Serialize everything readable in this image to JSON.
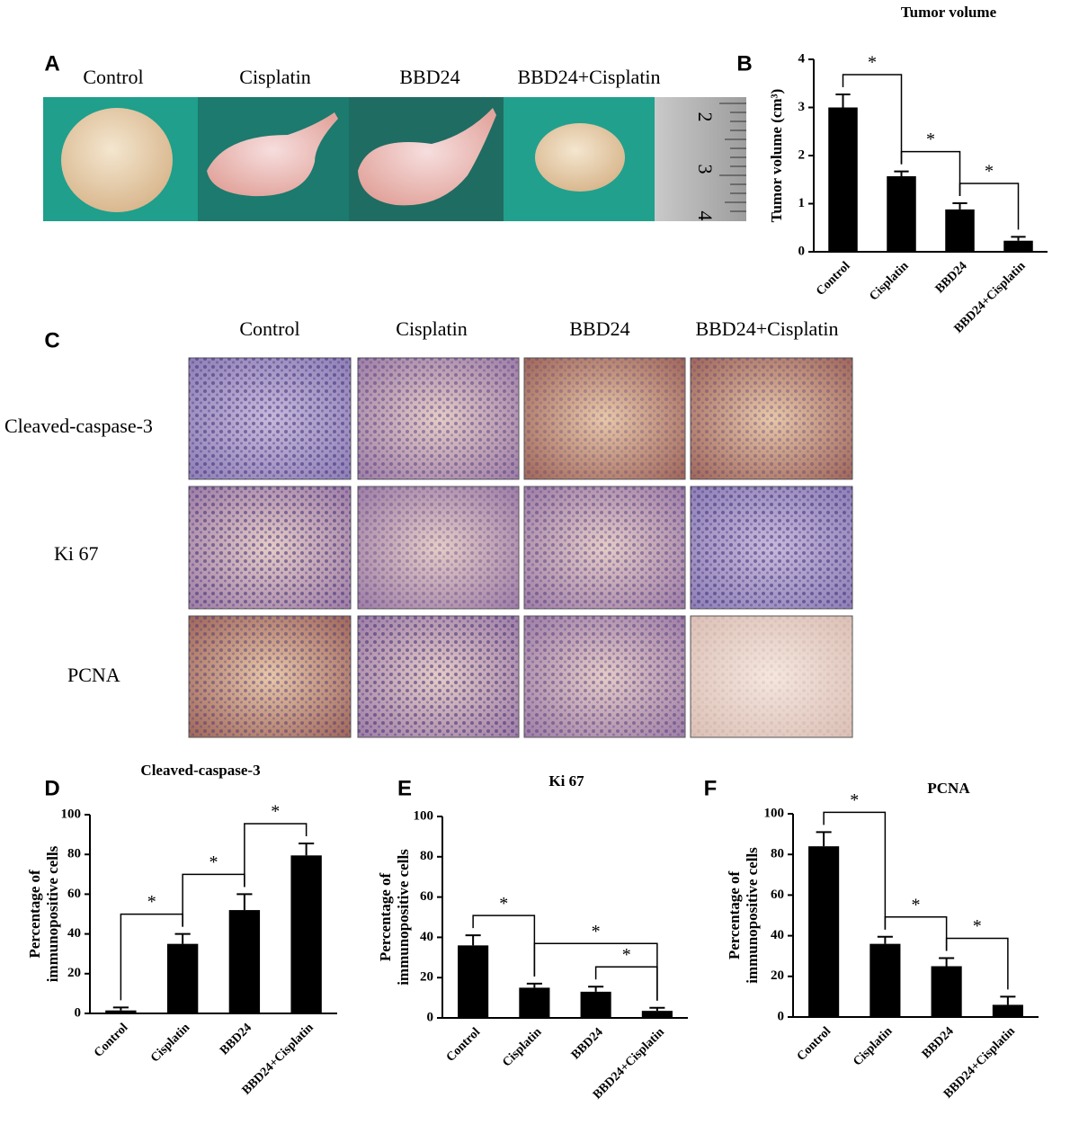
{
  "panel_labels": [
    "A",
    "B",
    "C",
    "D",
    "E",
    "F"
  ],
  "photos": {
    "groups": [
      "Control",
      "Cisplatin",
      "BBD24",
      "BBD24+Cisplatin"
    ],
    "ruler_marks": [
      "2",
      "3",
      "4"
    ]
  },
  "staining": {
    "groups": [
      "Control",
      "Cisplatin",
      "BBD24",
      "BBD24+Cisplatin"
    ],
    "markers": [
      "Cleaved-caspase-3",
      "Ki 67",
      "PCNA"
    ]
  },
  "chart_data": [
    {
      "type": "bar",
      "title": "Tumor volume",
      "ylabel": [
        "Tumor volume (cm³)"
      ],
      "categories": [
        "Control",
        "Cisplatin",
        "BBD24",
        "BBD24+Cisplatin"
      ],
      "values": [
        3.0,
        1.57,
        0.88,
        0.23
      ],
      "errors": [
        0.27,
        0.1,
        0.13,
        0.08
      ],
      "color": "#000000",
      "ylim": [
        0,
        4
      ],
      "yticks": [
        0,
        1,
        2,
        3,
        4
      ],
      "significance": [
        {
          "pair": [
            "Control",
            "Cisplatin"
          ],
          "label": "*"
        },
        {
          "pair": [
            "Cisplatin",
            "BBD24"
          ],
          "label": "*"
        },
        {
          "pair": [
            "BBD24",
            "BBD24+Cisplatin"
          ],
          "label": "*"
        }
      ]
    },
    {
      "type": "bar",
      "title": "Cleaved-caspase-3",
      "ylabel": [
        "Percentage of",
        "immunopositive cells"
      ],
      "categories": [
        "Control",
        "Cisplatin",
        "BBD24",
        "BBD24+Cisplatin"
      ],
      "values": [
        1.5,
        35,
        52,
        79.5
      ],
      "errors": [
        1.5,
        5,
        8,
        6
      ],
      "color": "#000000",
      "ylim": [
        0,
        100
      ],
      "yticks": [
        0,
        20,
        40,
        60,
        80,
        100
      ],
      "significance": [
        {
          "pair": [
            "Control",
            "Cisplatin"
          ],
          "label": "*"
        },
        {
          "pair": [
            "Cisplatin",
            "BBD24"
          ],
          "label": "*"
        },
        {
          "pair": [
            "BBD24",
            "BBD24+Cisplatin"
          ],
          "label": "*"
        }
      ]
    },
    {
      "type": "bar",
      "title": "Ki 67",
      "ylabel": [
        "Percentage of",
        "immunopositive cells"
      ],
      "categories": [
        "Control",
        "Cisplatin",
        "BBD24",
        "BBD24+Cisplatin"
      ],
      "values": [
        36,
        15,
        13,
        3.5
      ],
      "errors": [
        5,
        2,
        2.5,
        1.5
      ],
      "color": "#000000",
      "ylim": [
        0,
        100
      ],
      "yticks": [
        0,
        20,
        40,
        60,
        80,
        100
      ],
      "significance": [
        {
          "pair": [
            "Control",
            "Cisplatin"
          ],
          "label": "*"
        },
        {
          "pair": [
            "Cisplatin",
            "BBD24+Cisplatin"
          ],
          "label": "*"
        },
        {
          "pair": [
            "BBD24",
            "BBD24+Cisplatin"
          ],
          "label": "*"
        }
      ]
    },
    {
      "type": "bar",
      "title": "PCNA",
      "ylabel": [
        "Percentage of",
        "immunopositive cells"
      ],
      "categories": [
        "Control",
        "Cisplatin",
        "BBD24",
        "BBD24+Cisplatin"
      ],
      "values": [
        84,
        36,
        25,
        6
      ],
      "errors": [
        7,
        3.5,
        4,
        4
      ],
      "color": "#000000",
      "ylim": [
        0,
        100
      ],
      "yticks": [
        0,
        20,
        40,
        60,
        80,
        100
      ],
      "significance": [
        {
          "pair": [
            "Control",
            "Cisplatin"
          ],
          "label": "*"
        },
        {
          "pair": [
            "Cisplatin",
            "BBD24"
          ],
          "label": "*"
        },
        {
          "pair": [
            "BBD24",
            "BBD24+Cisplatin"
          ],
          "label": "*"
        }
      ]
    }
  ]
}
